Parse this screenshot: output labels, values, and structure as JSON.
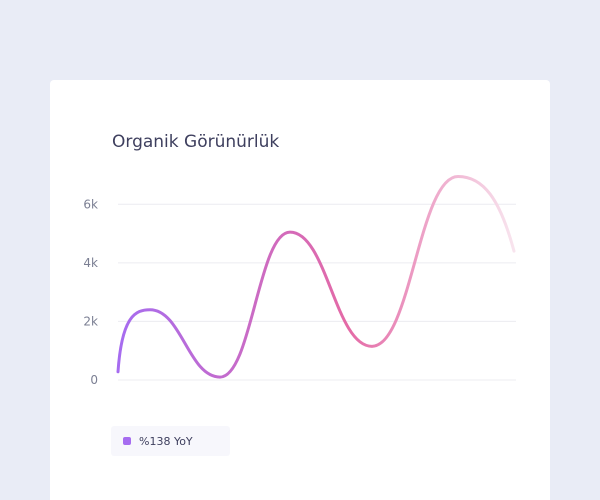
{
  "chart": {
    "title": "Organik Görünürlük"
  },
  "legend": {
    "label": "%138 YoY",
    "color": "#a66cf0"
  },
  "colors": {
    "background": "#e9ecf6",
    "card": "#ffffff",
    "gradient_start": "#a66cf0",
    "gradient_mid": "#e46aa6",
    "gradient_end": "#f8e4ee",
    "grid": "#ececf1"
  },
  "chart_data": {
    "type": "line",
    "title": "Organik Görünürlük",
    "xlabel": "",
    "ylabel": "",
    "ylim": [
      0,
      7000
    ],
    "yticks": [
      {
        "value": 0,
        "label": "0"
      },
      {
        "value": 2000,
        "label": "2k"
      },
      {
        "value": 4000,
        "label": "4k"
      },
      {
        "value": 6000,
        "label": "6k"
      }
    ],
    "grid": true,
    "series": [
      {
        "name": "%138 YoY",
        "values": [
          280,
          2400,
          100,
          5050,
          1150,
          6950,
          4400
        ]
      }
    ]
  }
}
